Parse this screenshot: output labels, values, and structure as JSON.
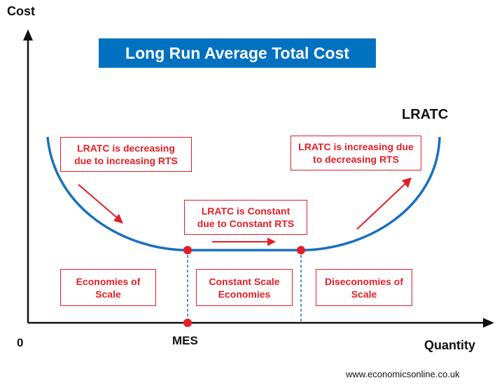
{
  "title": "Long Run Average Total Cost",
  "axes": {
    "y_label": "Cost",
    "x_label": "Quantity",
    "origin": "0"
  },
  "curve_label": "LRATC",
  "mes_label": "MES",
  "boxes": {
    "decreasing": "LRATC is decreasing\ndue to increasing RTS",
    "constant": "LRATC is Constant\ndue to Constant RTS",
    "increasing": "LRATC is increasing due\nto decreasing RTS",
    "economies": "Economies of\nScale",
    "constant_scale": "Constant Scale\nEconomies",
    "diseconomies": "Diseconomies of\nScale"
  },
  "source": "www.economicsonline.co.uk",
  "colors": {
    "curve": "#1a6fc0",
    "accent": "#e31e24",
    "title_bg": "#0070c0",
    "axis": "#111111"
  }
}
